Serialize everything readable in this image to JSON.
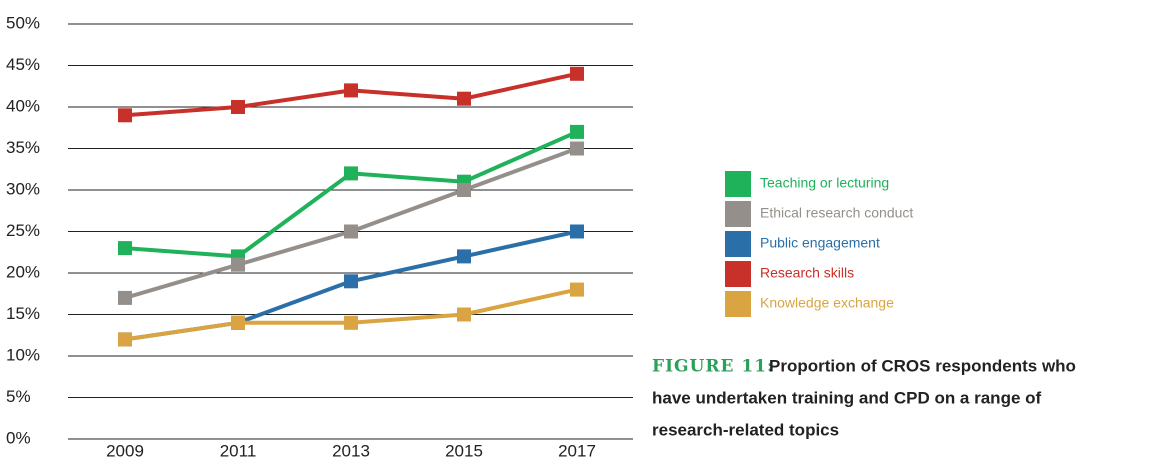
{
  "chart_data": {
    "type": "line",
    "categories": [
      "2009",
      "2011",
      "2013",
      "2015",
      "2017"
    ],
    "series": [
      {
        "name": "Teaching or lecturing",
        "color": "#1fb25a",
        "values": [
          23,
          22,
          32,
          31,
          37
        ]
      },
      {
        "name": "Ethical research conduct",
        "color": "#948f8a",
        "values": [
          17,
          21,
          25,
          30,
          35
        ]
      },
      {
        "name": "Public engagement",
        "color": "#2a6fa8",
        "values": [
          12,
          14,
          19,
          22,
          25
        ]
      },
      {
        "name": "Research skills",
        "color": "#c8302a",
        "values": [
          39,
          40,
          42,
          41,
          44
        ]
      },
      {
        "name": "Knowledge exchange",
        "color": "#d9a441",
        "values": [
          12,
          14,
          14,
          15,
          18
        ]
      }
    ],
    "ylim": [
      0,
      50
    ],
    "yticks": [
      {
        "value": 0,
        "label": "0%"
      },
      {
        "value": 5,
        "label": "5%"
      },
      {
        "value": 10,
        "label": "10%"
      },
      {
        "value": 15,
        "label": "15%"
      },
      {
        "value": 20,
        "label": "20%"
      },
      {
        "value": 25,
        "label": "25%"
      },
      {
        "value": 30,
        "label": "30%"
      },
      {
        "value": 35,
        "label": "35%"
      },
      {
        "value": 40,
        "label": "40%"
      },
      {
        "value": 45,
        "label": "45%"
      },
      {
        "value": 50,
        "label": "50%"
      }
    ],
    "grid": true,
    "legend": "right",
    "figure_label": "FIGURE 11:",
    "caption_lines": [
      "Proportion of CROS respondents who",
      "have undertaken training and CPD on a range of",
      "research-related topics"
    ]
  }
}
